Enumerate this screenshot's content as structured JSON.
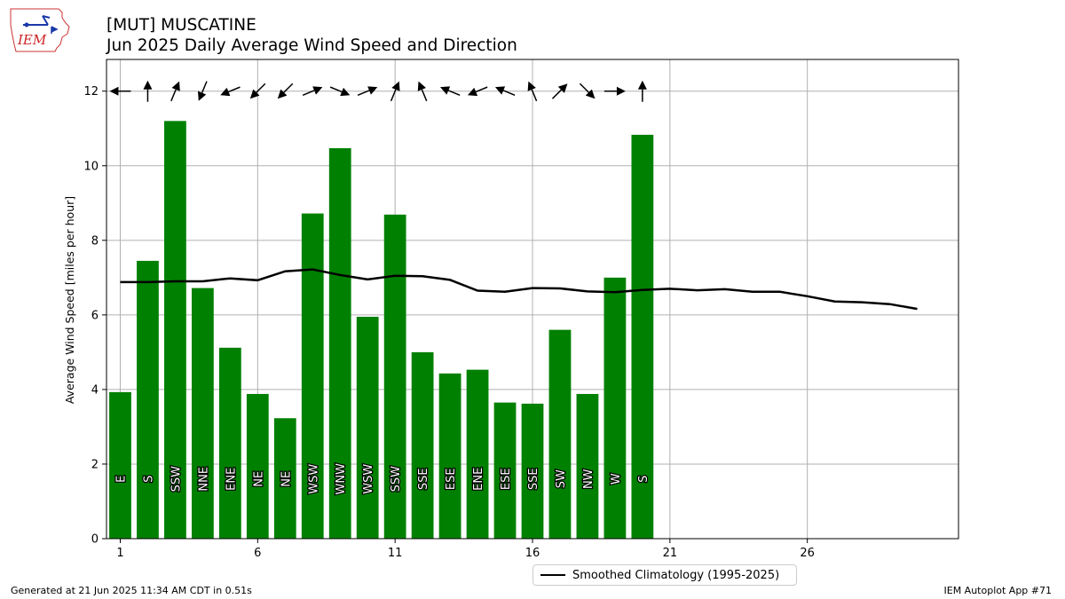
{
  "header": {
    "title_line1": "[MUT] MUSCATINE",
    "title_line2": "Jun 2025 Daily Average Wind Speed and Direction",
    "logo_text": "IEM"
  },
  "footer": {
    "generated": "Generated at 21 Jun 2025 11:34 AM CDT in 0.51s",
    "app": "IEM Autoplot App #71"
  },
  "colors": {
    "bar": "#008000",
    "climo_line": "#000000",
    "grid": "#b0b0b0"
  },
  "chart_data": {
    "type": "bar",
    "ylabel": "Average Wind Speed [miles per hour]",
    "xlim": [
      0.5,
      31.5
    ],
    "ylim": [
      0,
      12.85
    ],
    "x_ticks": [
      1,
      6,
      11,
      16,
      21,
      26
    ],
    "y_ticks": [
      0,
      2,
      4,
      6,
      8,
      10,
      12
    ],
    "grid": true,
    "legend_position": "bottom-center",
    "days": [
      1,
      2,
      3,
      4,
      5,
      6,
      7,
      8,
      9,
      10,
      11,
      12,
      13,
      14,
      15,
      16,
      17,
      18,
      19,
      20
    ],
    "speed": [
      3.93,
      7.45,
      11.2,
      6.72,
      5.12,
      3.88,
      3.23,
      8.72,
      10.47,
      5.95,
      8.69,
      5.0,
      4.43,
      4.53,
      3.65,
      3.62,
      5.6,
      3.88,
      7.0,
      10.83
    ],
    "direction_labels": [
      "E",
      "S",
      "SSW",
      "NNE",
      "ENE",
      "NE",
      "NE",
      "WSW",
      "WNW",
      "WSW",
      "SSW",
      "SSE",
      "ESE",
      "ENE",
      "ESE",
      "SSE",
      "SW",
      "NW",
      "W",
      "S"
    ],
    "direction_degrees": [
      90,
      180,
      202.5,
      22.5,
      67.5,
      45,
      45,
      247.5,
      292.5,
      247.5,
      202.5,
      157.5,
      112.5,
      67.5,
      112.5,
      157.5,
      225,
      315,
      270,
      180
    ],
    "arrow_y": 12,
    "climatology": {
      "name": "Smoothed Climatology (1995-2025)",
      "x": [
        1,
        2,
        3,
        4,
        5,
        6,
        7,
        8,
        9,
        10,
        11,
        12,
        13,
        14,
        15,
        16,
        17,
        18,
        19,
        20,
        21,
        22,
        23,
        24,
        25,
        26,
        27,
        28,
        29,
        30
      ],
      "y": [
        6.88,
        6.88,
        6.9,
        6.9,
        6.98,
        6.93,
        7.17,
        7.22,
        7.07,
        6.95,
        7.05,
        7.04,
        6.94,
        6.65,
        6.62,
        6.72,
        6.71,
        6.63,
        6.61,
        6.67,
        6.7,
        6.66,
        6.69,
        6.62,
        6.62,
        6.5,
        6.36,
        6.34,
        6.29,
        6.16
      ]
    }
  }
}
